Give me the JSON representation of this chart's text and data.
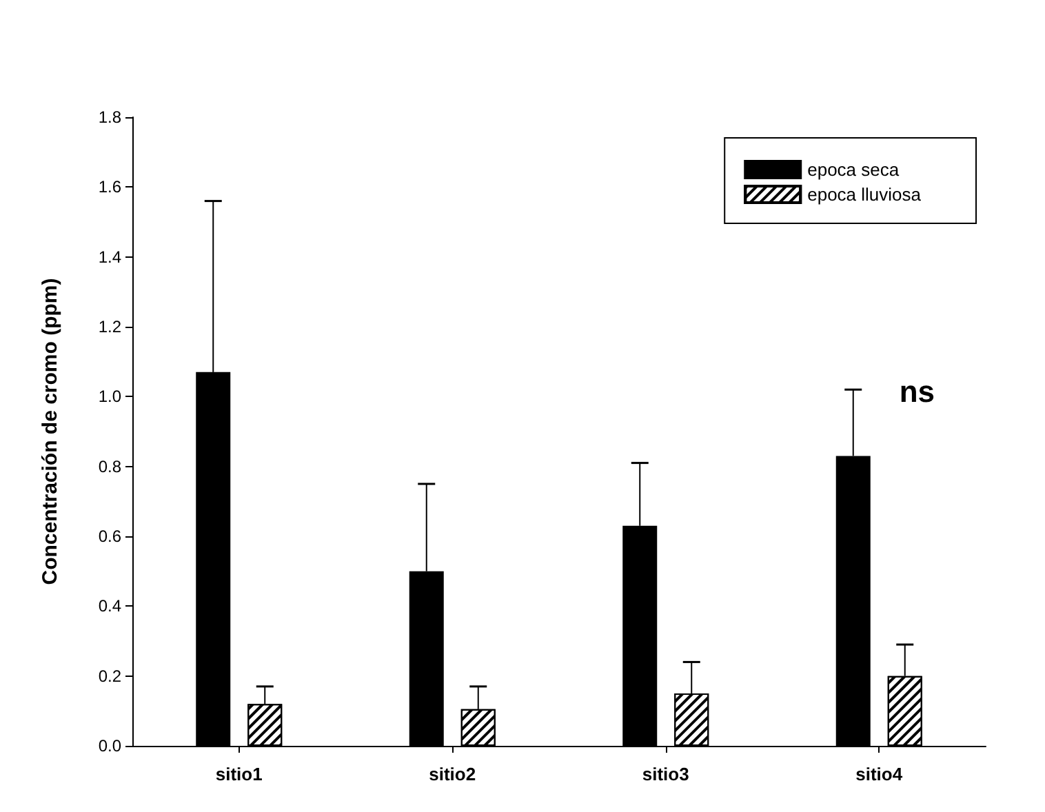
{
  "chart_data": {
    "type": "bar",
    "ylabel": "Concentración de cromo (ppm)",
    "categories": [
      "sitio1",
      "sitio2",
      "sitio3",
      "sitio4"
    ],
    "series": [
      {
        "name": "epoca seca",
        "color": "#000000",
        "values": [
          1.07,
          0.5,
          0.63,
          0.83
        ],
        "errors": [
          [
            1.07,
            1.56
          ],
          [
            0.5,
            0.75
          ],
          [
            0.63,
            0.81
          ],
          [
            0.83,
            1.02
          ]
        ]
      },
      {
        "name": "epoca lluviosa",
        "color": "#ffffff",
        "values": [
          0.12,
          0.105,
          0.15,
          0.2
        ],
        "errors": [
          [
            0.12,
            0.17
          ],
          [
            0.105,
            0.17
          ],
          [
            0.15,
            0.24
          ],
          [
            0.2,
            0.29
          ]
        ]
      }
    ],
    "ylim": [
      0,
      1.8
    ],
    "yticks": [
      {
        "value": 0,
        "label": "0.0"
      },
      0.2,
      0.4,
      0.6,
      0.8,
      {
        "value": 1,
        "label": "1.0"
      },
      1.2,
      1.4,
      1.6,
      1.8
    ],
    "grid": false,
    "legend": "top right",
    "annotations": [
      "ns"
    ]
  }
}
